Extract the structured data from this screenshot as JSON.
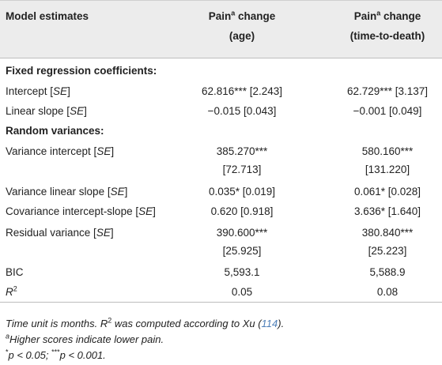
{
  "header": {
    "col1": "Model estimates",
    "col2_line1_a": "Pain",
    "col2_line1_sup": "a",
    "col2_line1_b": " change",
    "col2_line2": "(age)",
    "col3_line1_a": "Pain",
    "col3_line1_sup": "a",
    "col3_line1_b": " change",
    "col3_line2": "(time-to-death)"
  },
  "sections": {
    "fixed": "Fixed regression coefficients:",
    "random": "Random variances:"
  },
  "rows": {
    "intercept": {
      "label_a": "Intercept [",
      "label_i": "SE",
      "label_b": "]",
      "age": "62.816*** [2.243]",
      "ttd": "62.729*** [3.137]"
    },
    "linear_slope": {
      "label_a": "Linear slope [",
      "label_i": "SE",
      "label_b": "]",
      "age": "−0.015 [0.043]",
      "ttd": "−0.001 [0.049]"
    },
    "var_intercept": {
      "label_a": "Variance intercept [",
      "label_i": "SE",
      "label_b": "]",
      "age_1": "385.270***",
      "age_2": "[72.713]",
      "ttd_1": "580.160***",
      "ttd_2": "[131.220]"
    },
    "var_slope": {
      "label_a": "Variance linear slope [",
      "label_i": "SE",
      "label_b": "]",
      "age": "0.035* [0.019]",
      "ttd": "0.061* [0.028]"
    },
    "covariance": {
      "label_a": "Covariance intercept-slope [",
      "label_i": "SE",
      "label_b": "]",
      "age": "0.620 [0.918]",
      "ttd": "3.636* [1.640]"
    },
    "residual": {
      "label_a": "Residual variance [",
      "label_i": "SE",
      "label_b": "]",
      "age_1": "390.600***",
      "age_2": "[25.925]",
      "ttd_1": "380.840***",
      "ttd_2": "[25.223]"
    },
    "bic": {
      "label": "BIC",
      "age": "5,593.1",
      "ttd": "5,588.9"
    },
    "r2": {
      "label": "R",
      "label_sup": "2",
      "age": "0.05",
      "ttd": "0.08"
    }
  },
  "notes": {
    "line1_a": "Time unit is months. ",
    "line1_r": "R",
    "line1_sup": "2",
    "line1_b": " was computed according to Xu (",
    "line1_cite": "114",
    "line1_c": ").",
    "line2_sup": "a",
    "line2": "Higher scores indicate lower pain.",
    "line3_sup1": "*",
    "line3_a": "p < 0.05; ",
    "line3_sup2": "***",
    "line3_b": "p < 0.001."
  }
}
